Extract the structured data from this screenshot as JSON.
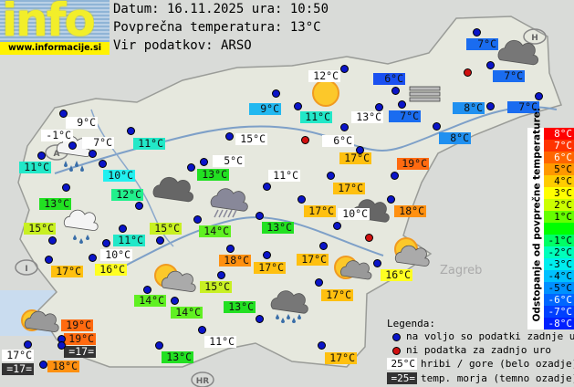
{
  "logo": {
    "word": "info",
    "url": "www.informacije.si"
  },
  "header": {
    "date_line": "Datum: 16.11.2025 ura: 10:50",
    "avg_line": "Povprečna temperatura: 13°C",
    "source_line": "Vir podatkov: ARSO"
  },
  "stations": [
    {
      "t": "9°C",
      "bg": "#ffffff"
    },
    {
      "t": "-1°C",
      "bg": "#ffffff"
    },
    {
      "t": "7°C",
      "bg": "#ffffff"
    },
    {
      "t": "11°C",
      "bg": "#22e8c8"
    },
    {
      "t": "10°C",
      "bg": "#22f0f0"
    },
    {
      "t": "11°C",
      "bg": "#22e8c8"
    },
    {
      "t": "13°C",
      "bg": "#22e022"
    },
    {
      "t": "12°C",
      "bg": "#22f08c"
    },
    {
      "t": "15°C",
      "bg": "#c8f022"
    },
    {
      "t": "11°C",
      "bg": "#22e8c8"
    },
    {
      "t": "10°C",
      "bg": "#ffffff"
    },
    {
      "t": "17°C",
      "bg": "#ffc010"
    },
    {
      "t": "16°C",
      "bg": "#ffff22"
    },
    {
      "t": "15°C",
      "bg": "#c8f022"
    },
    {
      "t": "14°C",
      "bg": "#60f022"
    },
    {
      "t": "13°C",
      "bg": "#22e022"
    },
    {
      "t": "5°C",
      "bg": "#ffffff"
    },
    {
      "t": "15°C",
      "bg": "#ffffff"
    },
    {
      "t": "9°C",
      "bg": "#22b8f0"
    },
    {
      "t": "11°C",
      "bg": "#22e8c8"
    },
    {
      "t": "12°C",
      "bg": "#ffffff"
    },
    {
      "t": "13°C",
      "bg": "#ffffff"
    },
    {
      "t": "6°C",
      "bg": "#ffffff"
    },
    {
      "t": "17°C",
      "bg": "#ffc010"
    },
    {
      "t": "17°C",
      "bg": "#ffc010"
    },
    {
      "t": "11°C",
      "bg": "#ffffff"
    },
    {
      "t": "6°C",
      "bg": "#1a50f0"
    },
    {
      "t": "7°C",
      "bg": "#1a6cf0"
    },
    {
      "t": "7°C",
      "bg": "#1a6cf0"
    },
    {
      "t": "7°C",
      "bg": "#1a6cf0"
    },
    {
      "t": "7°C",
      "bg": "#1a6cf0"
    },
    {
      "t": "8°C",
      "bg": "#2090f0"
    },
    {
      "t": "8°C",
      "bg": "#2090f0"
    },
    {
      "t": "19°C",
      "bg": "#ff6a10"
    },
    {
      "t": "17°C",
      "bg": "#ffc010"
    },
    {
      "t": "18°C",
      "bg": "#ff9010"
    },
    {
      "t": "10°C",
      "bg": "#ffffff"
    },
    {
      "t": "13°C",
      "bg": "#22e022"
    },
    {
      "t": "17°C",
      "bg": "#ffc010"
    },
    {
      "t": "18°C",
      "bg": "#ff9010"
    },
    {
      "t": "17°C",
      "bg": "#ffc010"
    },
    {
      "t": "16°C",
      "bg": "#ffff22"
    },
    {
      "t": "15°C",
      "bg": "#c8f022"
    },
    {
      "t": "17°C",
      "bg": "#ffc010"
    },
    {
      "t": "14°C",
      "bg": "#60f022"
    },
    {
      "t": "14°C",
      "bg": "#60f022"
    },
    {
      "t": "13°C",
      "bg": "#22e022"
    },
    {
      "t": "11°C",
      "bg": "#ffffff"
    },
    {
      "t": "13°C",
      "bg": "#22e022"
    },
    {
      "t": "17°C",
      "bg": "#ffc010"
    },
    {
      "t": "19°C",
      "bg": "#ff6a10"
    },
    {
      "t": "19°C",
      "bg": "#ff6a10"
    },
    {
      "t": "=17=",
      "bg": "#333333",
      "sea": true
    },
    {
      "t": "17°C",
      "bg": "#ffffff"
    },
    {
      "t": "=17=",
      "bg": "#333333",
      "sea": true
    },
    {
      "t": "18°C",
      "bg": "#ff9010"
    }
  ],
  "dot_colors": {
    "available": "#0a14c8",
    "no_data": "#d01010"
  },
  "weather_icons": [
    "sun",
    "cloudy",
    "rain",
    "fog",
    "partly-cloudy",
    "storm-rain"
  ],
  "scale": {
    "title": "Odstopanje od povprečne temperature:",
    "rows": [
      {
        "t": "8°C",
        "bg": "#ff0000",
        "fg": "#ffffff"
      },
      {
        "t": "7°C",
        "bg": "#ff3300",
        "fg": "#ffffff"
      },
      {
        "t": "6°C",
        "bg": "#ff6600",
        "fg": "#ffffff"
      },
      {
        "t": "5°C",
        "bg": "#ff9900",
        "fg": "#000000"
      },
      {
        "t": "4°C",
        "bg": "#ffcc00",
        "fg": "#000000"
      },
      {
        "t": "3°C",
        "bg": "#ffff00",
        "fg": "#000000"
      },
      {
        "t": "2°C",
        "bg": "#ccff00",
        "fg": "#000000"
      },
      {
        "t": "1°C",
        "bg": "#66ff00",
        "fg": "#000000"
      },
      {
        "t": "",
        "bg": "#00ff00",
        "fg": "#000000"
      },
      {
        "t": "-1°C",
        "bg": "#00ff66",
        "fg": "#000000"
      },
      {
        "t": "-2°C",
        "bg": "#00ffbb",
        "fg": "#000000"
      },
      {
        "t": "-3°C",
        "bg": "#00eeee",
        "fg": "#000000"
      },
      {
        "t": "-4°C",
        "bg": "#00c0ff",
        "fg": "#000000"
      },
      {
        "t": "-5°C",
        "bg": "#0090ff",
        "fg": "#000000"
      },
      {
        "t": "-6°C",
        "bg": "#0066ff",
        "fg": "#ffffff"
      },
      {
        "t": "-7°C",
        "bg": "#0040ff",
        "fg": "#ffffff"
      },
      {
        "t": "-8°C",
        "bg": "#0020ff",
        "fg": "#ffffff"
      }
    ]
  },
  "legend": {
    "title": "Legenda:",
    "available": "na voljo so podatki zadnje ure",
    "no_data": "ni podatka za zadnjo uro",
    "mountain_sample": "25°C",
    "mountain_text": "hribi / gore (belo ozadje)",
    "sea_sample": "=25=",
    "sea_text": "temp. morja (temno ozadje)"
  },
  "map_marks": {
    "austria": "A",
    "hungary": "H",
    "croatia": "HR",
    "italy": "I",
    "zagreb": "Zagreb"
  }
}
